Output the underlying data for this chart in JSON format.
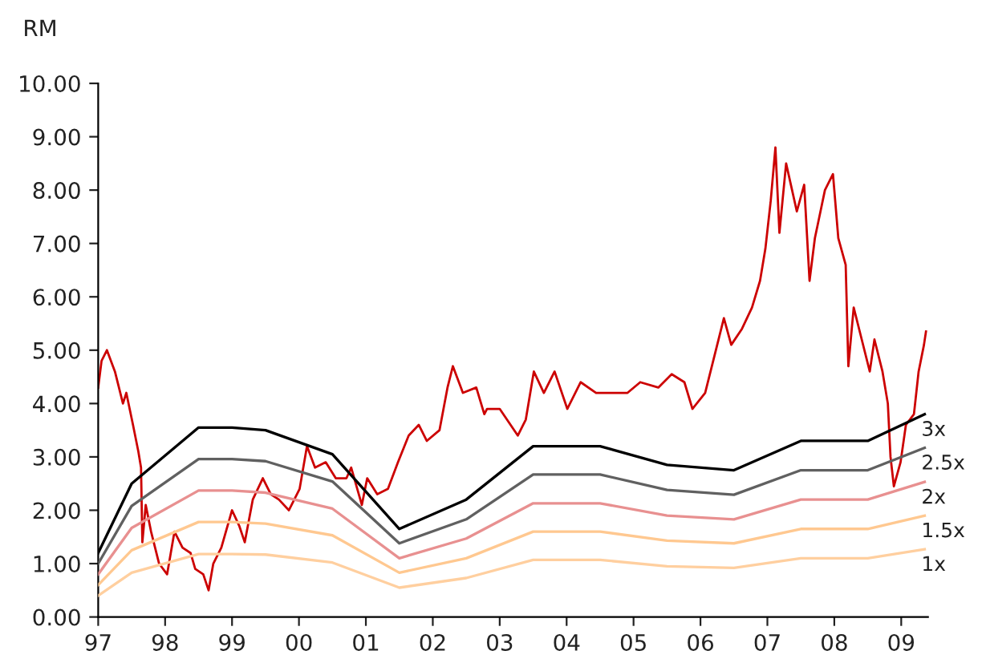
{
  "chart_data": {
    "type": "line",
    "ylabel": "RM",
    "legend": false,
    "grid": false,
    "marker": "none",
    "line_style": "solid",
    "x": [
      1997.0,
      1997.5,
      1998.5,
      1999.0,
      1999.5,
      2000.5,
      2001.5,
      2002.5,
      2003.5,
      2004.5,
      2005.5,
      2006.5,
      2007.5,
      2008.5,
      2009.35
    ],
    "xlim": [
      1997.0,
      2009.4
    ],
    "xticks": [
      {
        "value": 1997,
        "label": "97"
      },
      {
        "value": 1998,
        "label": "98"
      },
      {
        "value": 1999,
        "label": "99"
      },
      {
        "value": 2000,
        "label": "00"
      },
      {
        "value": 2001,
        "label": "01"
      },
      {
        "value": 2002,
        "label": "02"
      },
      {
        "value": 2003,
        "label": "03"
      },
      {
        "value": 2004,
        "label": "04"
      },
      {
        "value": 2005,
        "label": "05"
      },
      {
        "value": 2006,
        "label": "06"
      },
      {
        "value": 2007,
        "label": "07"
      },
      {
        "value": 2008,
        "label": "08"
      },
      {
        "value": 2009,
        "label": "09"
      }
    ],
    "ylim": [
      0,
      10
    ],
    "yticks": [
      {
        "value": 0,
        "label": "0.00"
      },
      {
        "value": 1,
        "label": "1.00"
      },
      {
        "value": 2,
        "label": "2.00"
      },
      {
        "value": 3,
        "label": "3.00"
      },
      {
        "value": 4,
        "label": "4.00"
      },
      {
        "value": 5,
        "label": "5.00"
      },
      {
        "value": 6,
        "label": "6.00"
      },
      {
        "value": 7,
        "label": "7.00"
      },
      {
        "value": 8,
        "label": "8.00"
      },
      {
        "value": 9,
        "label": "9.00"
      },
      {
        "value": 10,
        "label": "10.00"
      }
    ],
    "series": [
      {
        "color": "#cc0000",
        "x": [
          1997.0,
          1997.05,
          1997.13,
          1997.25,
          1997.37,
          1997.42,
          1997.52,
          1997.6,
          1997.64,
          1997.66,
          1997.71,
          1997.79,
          1997.91,
          1998.03,
          1998.14,
          1998.26,
          1998.38,
          1998.45,
          1998.57,
          1998.65,
          1998.72,
          1998.84,
          1999.0,
          1999.11,
          1999.19,
          1999.31,
          1999.46,
          1999.58,
          1999.7,
          1999.85,
          2000.01,
          2000.12,
          2000.24,
          2000.4,
          2000.55,
          2000.71,
          2000.78,
          2000.94,
          2001.02,
          2001.17,
          2001.33,
          2001.48,
          2001.64,
          2001.79,
          2001.91,
          2002.1,
          2002.22,
          2002.3,
          2002.45,
          2002.65,
          2002.77,
          2002.81,
          2003.0,
          2003.27,
          2003.39,
          2003.51,
          2003.66,
          2003.82,
          2004.01,
          2004.21,
          2004.44,
          2004.67,
          2004.91,
          2005.1,
          2005.37,
          2005.57,
          2005.76,
          2005.88,
          2006.07,
          2006.23,
          2006.35,
          2006.46,
          2006.62,
          2006.77,
          2006.89,
          2006.97,
          2007.05,
          2007.12,
          2007.18,
          2007.28,
          2007.44,
          2007.55,
          2007.63,
          2007.71,
          2007.86,
          2007.98,
          2008.06,
          2008.17,
          2008.21,
          2008.29,
          2008.41,
          2008.53,
          2008.6,
          2008.72,
          2008.8,
          2008.84,
          2008.89,
          2008.99,
          2009.07,
          2009.19,
          2009.26,
          2009.34,
          2009.37
        ],
        "values": [
          4.3,
          4.8,
          5.0,
          4.6,
          4.0,
          4.2,
          3.6,
          3.1,
          2.8,
          1.4,
          2.1,
          1.6,
          1.0,
          0.8,
          1.6,
          1.3,
          1.2,
          0.9,
          0.8,
          0.5,
          1.0,
          1.3,
          2.0,
          1.7,
          1.4,
          2.2,
          2.6,
          2.3,
          2.2,
          2.0,
          2.4,
          3.2,
          2.8,
          2.9,
          2.6,
          2.6,
          2.8,
          2.1,
          2.6,
          2.3,
          2.4,
          2.9,
          3.4,
          3.6,
          3.3,
          3.5,
          4.3,
          4.7,
          4.2,
          4.3,
          3.8,
          3.9,
          3.9,
          3.4,
          3.7,
          4.6,
          4.2,
          4.6,
          3.9,
          4.4,
          4.2,
          4.2,
          4.2,
          4.4,
          4.3,
          4.55,
          4.4,
          3.9,
          4.2,
          5.0,
          5.6,
          5.1,
          5.4,
          5.8,
          6.3,
          6.9,
          7.8,
          8.8,
          7.2,
          8.5,
          7.6,
          8.1,
          6.3,
          7.1,
          8.0,
          8.3,
          7.1,
          6.6,
          4.7,
          5.8,
          5.2,
          4.6,
          5.2,
          4.6,
          4.0,
          3.0,
          2.45,
          2.9,
          3.6,
          3.8,
          4.6,
          5.1,
          5.35
        ]
      },
      {
        "name": "3x",
        "color": "#000000",
        "values": [
          1.2,
          2.5,
          3.55,
          3.55,
          3.5,
          3.05,
          1.65,
          2.2,
          3.2,
          3.2,
          2.85,
          2.75,
          3.3,
          3.3,
          3.8
        ]
      },
      {
        "name": "2.5x",
        "color": "#606060",
        "values": [
          1.0,
          2.08,
          2.96,
          2.96,
          2.92,
          2.54,
          1.38,
          1.83,
          2.67,
          2.67,
          2.38,
          2.29,
          2.75,
          2.75,
          3.17
        ]
      },
      {
        "name": "2x",
        "color": "#e89090",
        "values": [
          0.8,
          1.67,
          2.37,
          2.37,
          2.33,
          2.03,
          1.1,
          1.47,
          2.13,
          2.13,
          1.9,
          1.83,
          2.2,
          2.2,
          2.53
        ]
      },
      {
        "name": "1.5x",
        "color": "#ffc890",
        "values": [
          0.6,
          1.25,
          1.78,
          1.78,
          1.75,
          1.53,
          0.83,
          1.1,
          1.6,
          1.6,
          1.43,
          1.38,
          1.65,
          1.65,
          1.9
        ]
      },
      {
        "name": "1x",
        "color": "#ffcf9f",
        "values": [
          0.4,
          0.83,
          1.18,
          1.18,
          1.17,
          1.02,
          0.55,
          0.73,
          1.07,
          1.07,
          0.95,
          0.92,
          1.1,
          1.1,
          1.27
        ]
      }
    ]
  }
}
